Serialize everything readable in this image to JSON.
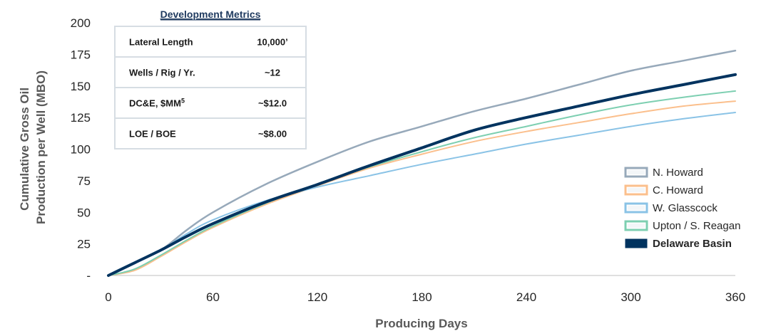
{
  "chart_data": {
    "type": "line",
    "xlabel": "Producing Days",
    "ylabel": [
      "Cumulative Gross Oil",
      "Production per Well (MBO)"
    ],
    "xlim": [
      0,
      360
    ],
    "ylim": [
      0,
      200
    ],
    "xticks": [
      "0",
      "60",
      "120",
      "180",
      "240",
      "300",
      "360"
    ],
    "yticks": [
      "-",
      "25",
      "50",
      "75",
      "100",
      "125",
      "150",
      "175",
      "200"
    ],
    "grid": false,
    "legend_position": "right",
    "x": [
      0,
      15,
      30,
      45,
      60,
      90,
      120,
      150,
      180,
      210,
      240,
      270,
      300,
      330,
      360
    ],
    "series": [
      {
        "name": "N. Howard",
        "color": "#97a9ba",
        "width": 2.5,
        "bold": false,
        "values": [
          0,
          10,
          20,
          36,
          50,
          72,
          90,
          106,
          118,
          130,
          140,
          151,
          162,
          170,
          178
        ]
      },
      {
        "name": "C. Howard",
        "color": "#fbbf8c",
        "width": 2,
        "bold": false,
        "values": [
          0,
          4,
          15,
          27,
          38,
          56,
          71,
          85,
          96,
          106,
          114,
          121,
          128,
          134,
          138
        ]
      },
      {
        "name": "W. Glasscock",
        "color": "#8ac3e6",
        "width": 2,
        "bold": false,
        "values": [
          0,
          10,
          20,
          33,
          44,
          59,
          70,
          79,
          88,
          96,
          104,
          111,
          118,
          124,
          129
        ]
      },
      {
        "name": "Upton / S. Reagan",
        "color": "#7dcfb1",
        "width": 2,
        "bold": false,
        "values": [
          0,
          5,
          16,
          28,
          39,
          57,
          72,
          86,
          98,
          109,
          118,
          127,
          135,
          141,
          146
        ]
      },
      {
        "name": "Delaware Basin",
        "color": "#00335f",
        "width": 4,
        "bold": true,
        "values": [
          0,
          10,
          20,
          31,
          41,
          58,
          72,
          87,
          101,
          115,
          125,
          134,
          143,
          151,
          159
        ]
      }
    ]
  },
  "metrics": {
    "title": "Development Metrics",
    "rows": [
      {
        "label": "Lateral Length",
        "value": "10,000’"
      },
      {
        "label": "Wells / Rig / Yr.",
        "value": "~12"
      },
      {
        "label": "DC&E, $MM",
        "sup": "5",
        "value": "~$12.0"
      },
      {
        "label": "LOE / BOE",
        "value": "~$8.00"
      }
    ]
  }
}
